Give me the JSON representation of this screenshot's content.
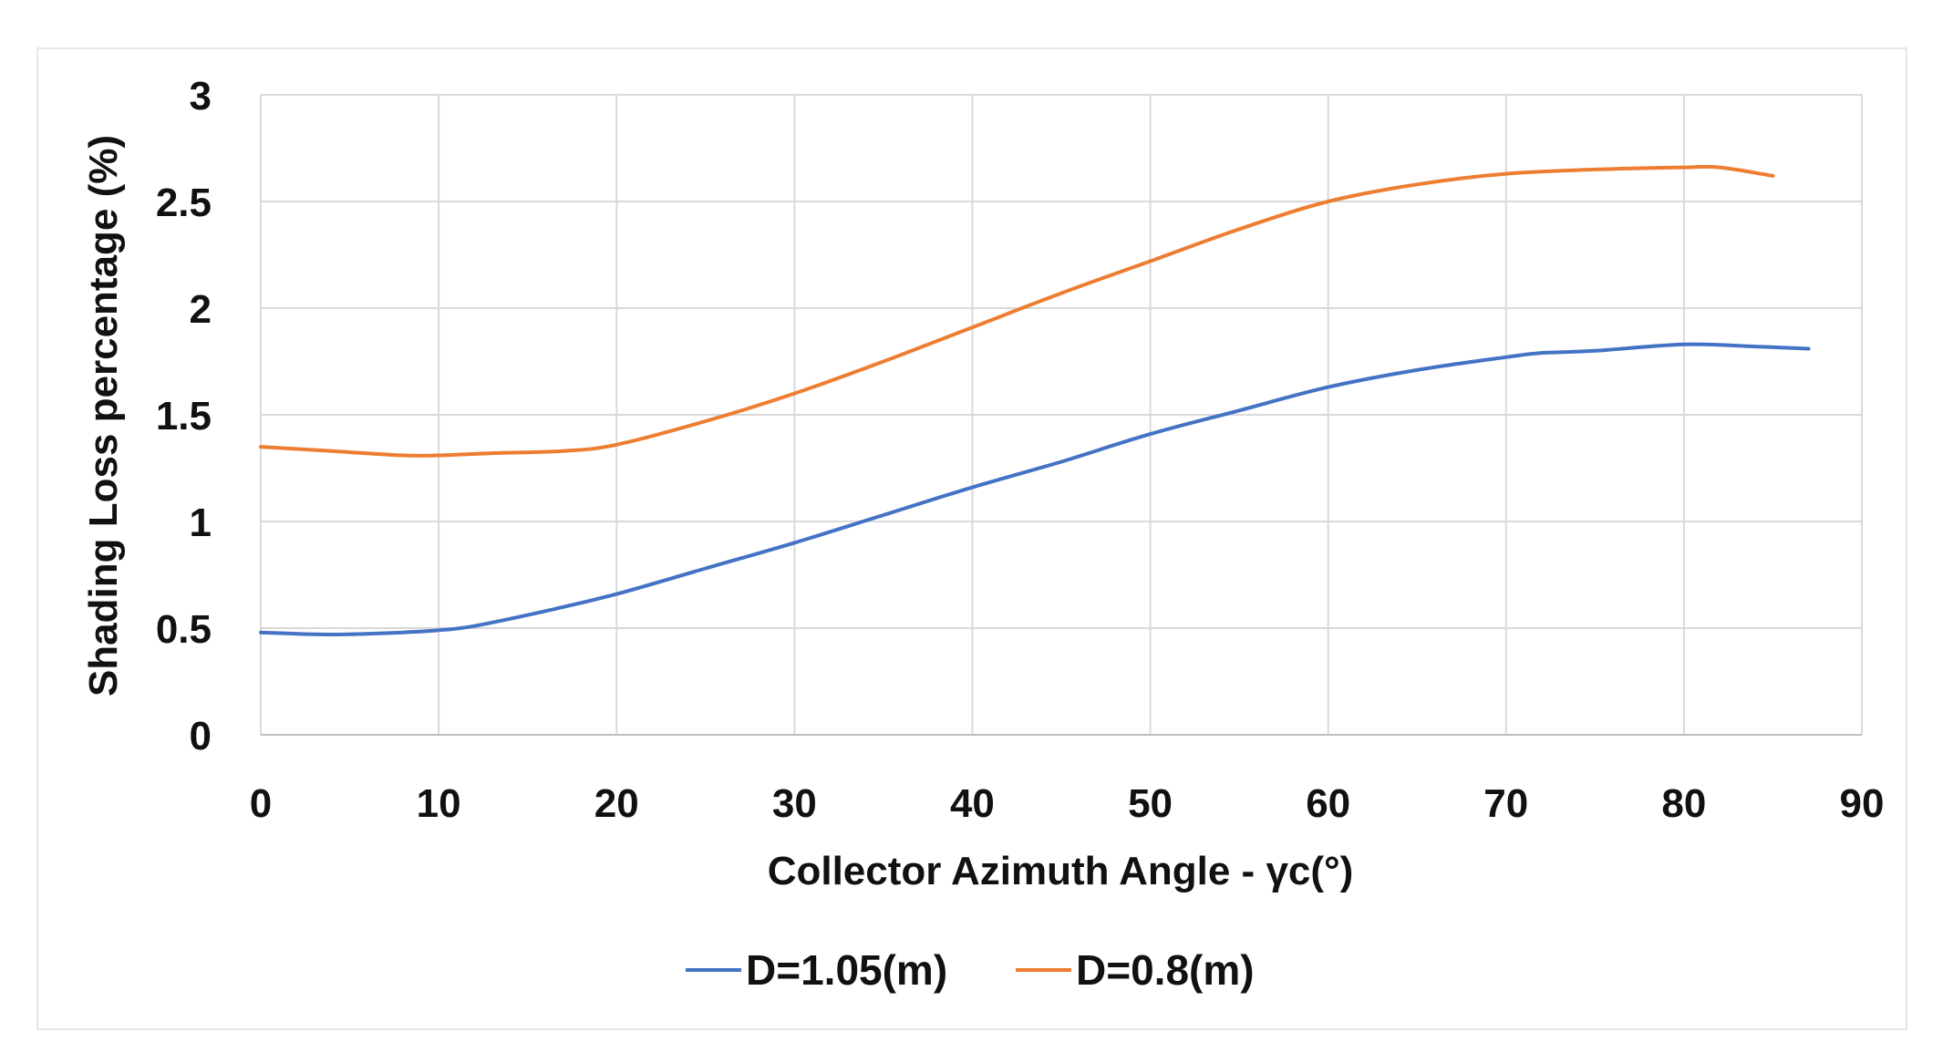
{
  "chart_data": {
    "type": "line",
    "xlabel": "Collector Azimuth Angle - γc(°)",
    "ylabel": "Shading Loss percentage (%)",
    "xlim": [
      0,
      90
    ],
    "ylim": [
      0,
      3
    ],
    "xticks": [
      0,
      10,
      20,
      30,
      40,
      50,
      60,
      70,
      80,
      90
    ],
    "yticks": [
      0,
      0.5,
      1,
      1.5,
      2,
      2.5,
      3
    ],
    "xtick_labels": [
      "0",
      "10",
      "20",
      "30",
      "40",
      "50",
      "60",
      "70",
      "80",
      "90"
    ],
    "ytick_labels": [
      "0",
      "0.5",
      "1",
      "1.5",
      "2",
      "2.5",
      "3"
    ],
    "grid": true,
    "legend_position": "bottom",
    "series": [
      {
        "name": "D=1.05(m)",
        "color": "#4472C4",
        "x": [
          0,
          4,
          8,
          10,
          12,
          16,
          20,
          25,
          30,
          35,
          40,
          45,
          50,
          55,
          60,
          65,
          70,
          72,
          75,
          80,
          84,
          87
        ],
        "y": [
          0.48,
          0.47,
          0.48,
          0.49,
          0.51,
          0.58,
          0.66,
          0.78,
          0.9,
          1.03,
          1.16,
          1.28,
          1.41,
          1.52,
          1.63,
          1.71,
          1.77,
          1.79,
          1.8,
          1.83,
          1.82,
          1.81
        ]
      },
      {
        "name": "D=0.8(m)",
        "color": "#ED7D31",
        "x": [
          0,
          4,
          8,
          10,
          13,
          17,
          20,
          25,
          30,
          35,
          40,
          45,
          50,
          55,
          60,
          65,
          70,
          75,
          80,
          82,
          85
        ],
        "y": [
          1.35,
          1.33,
          1.31,
          1.31,
          1.32,
          1.33,
          1.36,
          1.47,
          1.6,
          1.75,
          1.91,
          2.07,
          2.22,
          2.37,
          2.5,
          2.58,
          2.63,
          2.65,
          2.66,
          2.66,
          2.62
        ]
      }
    ]
  }
}
